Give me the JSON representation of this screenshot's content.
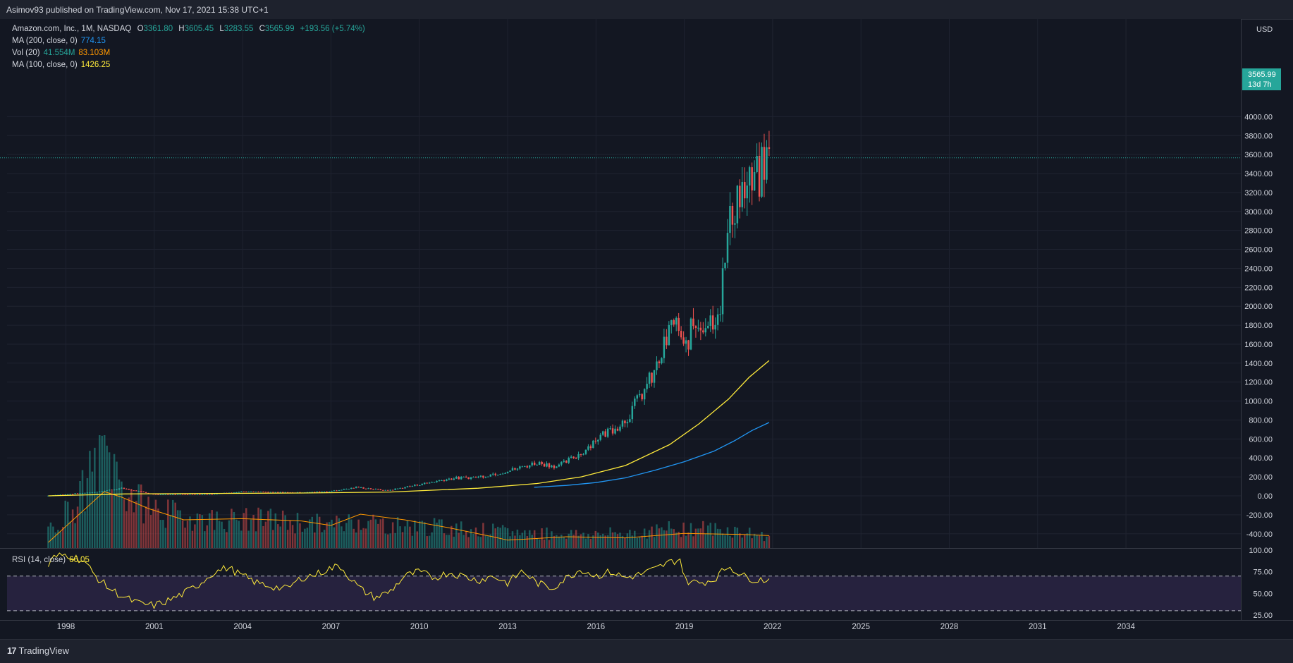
{
  "header": {
    "published": "Asimov93 published on TradingView.com, Nov 17, 2021 15:38 UTC+1"
  },
  "legend": {
    "symbol": "Amazon.com, Inc., 1M, NASDAQ",
    "ohlc": {
      "o_label": "O",
      "o": "3361.80",
      "h_label": "H",
      "h": "3605.45",
      "l_label": "L",
      "l": "3283.55",
      "c_label": "C",
      "c": "3565.99",
      "change": "+193.56 (+5.74%)"
    },
    "ma200": {
      "label": "MA (200, close, 0)",
      "value": "774.15"
    },
    "vol": {
      "label": "Vol (20)",
      "value1": "41.554M",
      "value2": "83.103M"
    },
    "ma100": {
      "label": "MA (100, close, 0)",
      "value": "1426.25"
    },
    "rsi": {
      "label": "RSI (14, close)",
      "value": "66.05"
    }
  },
  "price_axis": {
    "currency": "USD",
    "last_price": "3565.99",
    "countdown": "13d 7h"
  },
  "footer": {
    "brand": "TradingView",
    "brand_mark": "17"
  },
  "colors": {
    "background": "#131722",
    "up": "#26a69a",
    "down": "#ef5350",
    "ma200": "#2196f3",
    "ma100": "#ffeb3b",
    "vol_ma": "#ff9800",
    "rsi": "#ffeb3b",
    "rsi_band": "#7e57c2"
  },
  "chart_data": [
    {
      "type": "candlestick",
      "title": "Amazon.com, Inc., 1M, NASDAQ",
      "x_tick_labels": [
        "1998",
        "2001",
        "2004",
        "2007",
        "2010",
        "2013",
        "2016",
        "2019",
        "2022",
        "2025",
        "2028",
        "2031",
        "2034"
      ],
      "y_tick_labels": [
        "4000.00",
        "3800.00",
        "3600.00",
        "3400.00",
        "3200.00",
        "3000.00",
        "2800.00",
        "2600.00",
        "2400.00",
        "2200.00",
        "2000.00",
        "1800.00",
        "1600.00",
        "1400.00",
        "1200.00",
        "1000.00",
        "800.00",
        "600.00",
        "400.00",
        "200.00",
        "0.00",
        "-200.00",
        "-400.00"
      ],
      "ylim": [
        -400,
        4000
      ],
      "xlim": [
        1996.0,
        2037.9
      ],
      "grid": true,
      "price_anchors": [
        [
          1997.4,
          2
        ],
        [
          1999.0,
          40
        ],
        [
          1999.9,
          80
        ],
        [
          2001.0,
          15
        ],
        [
          2003.0,
          20
        ],
        [
          2004.0,
          45
        ],
        [
          2005.0,
          38
        ],
        [
          2006.0,
          35
        ],
        [
          2007.0,
          50
        ],
        [
          2007.9,
          90
        ],
        [
          2008.9,
          55
        ],
        [
          2010.0,
          120
        ],
        [
          2011.0,
          180
        ],
        [
          2012.0,
          200
        ],
        [
          2013.0,
          260
        ],
        [
          2014.0,
          350
        ],
        [
          2014.7,
          310
        ],
        [
          2015.5,
          450
        ],
        [
          2016.0,
          600
        ],
        [
          2017.0,
          800
        ],
        [
          2018.0,
          1300
        ],
        [
          2018.7,
          1900
        ],
        [
          2018.95,
          1500
        ],
        [
          2019.3,
          1800
        ],
        [
          2019.9,
          1850
        ],
        [
          2020.2,
          2000
        ],
        [
          2020.5,
          2800
        ],
        [
          2020.8,
          3200
        ],
        [
          2021.0,
          3200
        ],
        [
          2021.4,
          3300
        ],
        [
          2021.6,
          3400
        ],
        [
          2021.88,
          3565.99
        ]
      ],
      "series": [
        {
          "name": "MA (200, close, 0)",
          "color": "#2196f3",
          "points": [
            [
              2013.9,
              90
            ],
            [
              2015.0,
              110
            ],
            [
              2016.0,
              140
            ],
            [
              2017.0,
              190
            ],
            [
              2018.0,
              270
            ],
            [
              2019.0,
              360
            ],
            [
              2020.0,
              470
            ],
            [
              2020.7,
              580
            ],
            [
              2021.3,
              690
            ],
            [
              2021.88,
              774.15
            ]
          ]
        },
        {
          "name": "MA (100, close, 0)",
          "color": "#ffeb3b",
          "points": [
            [
              1997.4,
              0
            ],
            [
              2000.0,
              20
            ],
            [
              2003.0,
              25
            ],
            [
              2006.0,
              30
            ],
            [
              2009.0,
              40
            ],
            [
              2012.0,
              80
            ],
            [
              2014.0,
              130
            ],
            [
              2015.5,
              200
            ],
            [
              2017.0,
              320
            ],
            [
              2018.5,
              540
            ],
            [
              2019.5,
              760
            ],
            [
              2020.5,
              1020
            ],
            [
              2021.2,
              1250
            ],
            [
              2021.88,
              1426.25
            ]
          ]
        }
      ]
    },
    {
      "type": "bar",
      "title": "Vol (20)",
      "bar_anchors": [
        [
          1997.4,
          0.15
        ],
        [
          1998.5,
          0.45
        ],
        [
          1999.3,
          0.9
        ],
        [
          1999.9,
          0.55
        ],
        [
          2000.5,
          0.4
        ],
        [
          2001.5,
          0.3
        ],
        [
          2003.0,
          0.25
        ],
        [
          2005.0,
          0.25
        ],
        [
          2007.0,
          0.2
        ],
        [
          2008.0,
          0.25
        ],
        [
          2009.0,
          0.2
        ],
        [
          2011.0,
          0.18
        ],
        [
          2013.0,
          0.14
        ],
        [
          2016.0,
          0.12
        ],
        [
          2018.0,
          0.15
        ],
        [
          2019.0,
          0.18
        ],
        [
          2020.5,
          0.16
        ],
        [
          2021.88,
          0.1
        ]
      ],
      "ma_anchors": [
        [
          1997.4,
          0.05
        ],
        [
          1999.3,
          0.5
        ],
        [
          1999.9,
          0.45
        ],
        [
          2000.8,
          0.35
        ],
        [
          2002.0,
          0.25
        ],
        [
          2004.0,
          0.26
        ],
        [
          2006.0,
          0.24
        ],
        [
          2007.0,
          0.2
        ],
        [
          2008.0,
          0.3
        ],
        [
          2009.5,
          0.25
        ],
        [
          2011.0,
          0.18
        ],
        [
          2012.5,
          0.1
        ],
        [
          2013.0,
          0.07
        ],
        [
          2015.0,
          0.1
        ],
        [
          2017.0,
          0.09
        ],
        [
          2019.0,
          0.13
        ],
        [
          2021.0,
          0.12
        ],
        [
          2021.88,
          0.11
        ]
      ]
    },
    {
      "type": "line",
      "title": "RSI (14, close)",
      "y_tick_labels": [
        "100.00",
        "75.00",
        "50.00",
        "25.00"
      ],
      "ylim": [
        25,
        100
      ],
      "band": [
        30,
        70
      ],
      "points": [
        [
          1997.4,
          82
        ],
        [
          1997.6,
          92
        ],
        [
          1998.0,
          95
        ],
        [
          1998.6,
          88
        ],
        [
          1999.0,
          70
        ],
        [
          1999.5,
          55
        ],
        [
          2000.0,
          45
        ],
        [
          2000.5,
          38
        ],
        [
          2001.0,
          36
        ],
        [
          2001.5,
          42
        ],
        [
          2002.0,
          50
        ],
        [
          2002.5,
          60
        ],
        [
          2003.0,
          74
        ],
        [
          2003.5,
          80
        ],
        [
          2004.0,
          70
        ],
        [
          2004.5,
          62
        ],
        [
          2005.0,
          58
        ],
        [
          2005.5,
          55
        ],
        [
          2006.0,
          68
        ],
        [
          2006.5,
          72
        ],
        [
          2006.9,
          78
        ],
        [
          2007.3,
          82
        ],
        [
          2007.7,
          66
        ],
        [
          2008.0,
          55
        ],
        [
          2008.5,
          45
        ],
        [
          2009.0,
          52
        ],
        [
          2009.5,
          70
        ],
        [
          2010.0,
          75
        ],
        [
          2010.5,
          68
        ],
        [
          2011.0,
          74
        ],
        [
          2011.5,
          70
        ],
        [
          2012.0,
          65
        ],
        [
          2012.5,
          70
        ],
        [
          2013.0,
          62
        ],
        [
          2013.5,
          76
        ],
        [
          2014.0,
          62
        ],
        [
          2014.5,
          56
        ],
        [
          2015.0,
          68
        ],
        [
          2015.5,
          78
        ],
        [
          2016.0,
          70
        ],
        [
          2016.5,
          75
        ],
        [
          2017.0,
          68
        ],
        [
          2017.5,
          72
        ],
        [
          2018.0,
          78
        ],
        [
          2018.5,
          86
        ],
        [
          2018.9,
          90
        ],
        [
          2019.0,
          65
        ],
        [
          2019.5,
          62
        ],
        [
          2020.0,
          66
        ],
        [
          2020.5,
          82
        ],
        [
          2021.0,
          70
        ],
        [
          2021.4,
          66
        ],
        [
          2021.88,
          66.05
        ]
      ]
    }
  ]
}
